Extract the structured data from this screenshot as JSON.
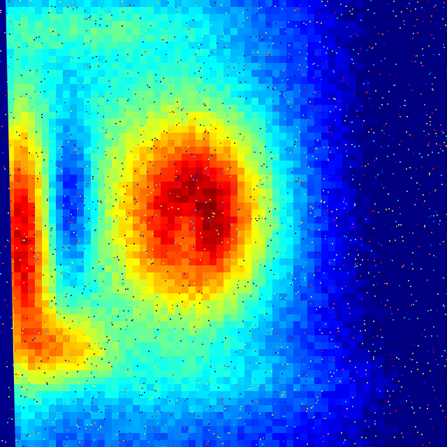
{
  "image": {
    "kind": "false-color intensity heatmap (no axes, labels or text visible)",
    "colormap": "jet",
    "colormap_stops": [
      "#00008b",
      "#0000ff",
      "#0080ff",
      "#00ffff",
      "#80ff80",
      "#ffff00",
      "#ff8000",
      "#ff0000",
      "#800000"
    ],
    "background_color": "#00008b",
    "has_text": false
  }
}
